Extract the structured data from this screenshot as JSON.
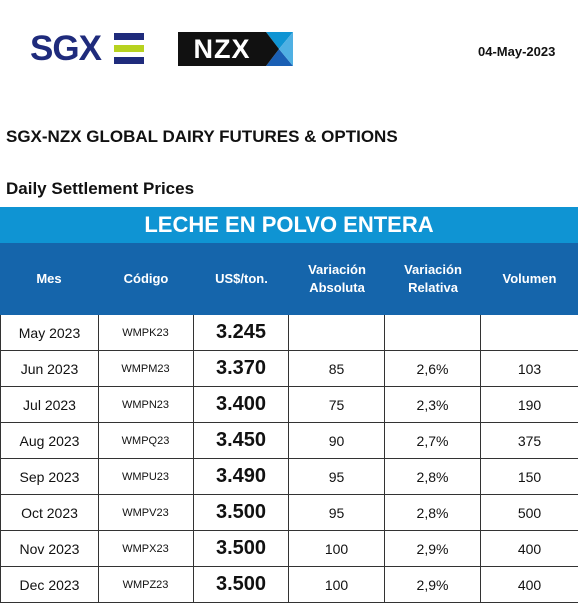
{
  "header": {
    "sgx_logo_text": "SGX",
    "nzx_logo_text": "NZX",
    "date": "04-May-2023",
    "title": "SGX-NZX GLOBAL DAIRY FUTURES & OPTIONS",
    "subtitle": "Daily Settlement Prices"
  },
  "table": {
    "product": "LECHE EN POLVO ENTERA",
    "columns": {
      "mes": "Mes",
      "codigo": "Código",
      "price": "US$/ton.",
      "var_abs_1": "Variación",
      "var_abs_2": "Absoluta",
      "var_rel_1": "Variación",
      "var_rel_2": "Relativa",
      "volumen": "Volumen"
    },
    "rows": [
      {
        "mes": "May 2023",
        "codigo": "WMPK23",
        "price": "3.245",
        "var_abs": "",
        "var_rel": "",
        "volumen": ""
      },
      {
        "mes": "Jun 2023",
        "codigo": "WMPM23",
        "price": "3.370",
        "var_abs": "85",
        "var_rel": "2,6%",
        "volumen": "103"
      },
      {
        "mes": "Jul 2023",
        "codigo": "WMPN23",
        "price": "3.400",
        "var_abs": "75",
        "var_rel": "2,3%",
        "volumen": "190"
      },
      {
        "mes": "Aug 2023",
        "codigo": "WMPQ23",
        "price": "3.450",
        "var_abs": "90",
        "var_rel": "2,7%",
        "volumen": "375"
      },
      {
        "mes": "Sep 2023",
        "codigo": "WMPU23",
        "price": "3.490",
        "var_abs": "95",
        "var_rel": "2,8%",
        "volumen": "150"
      },
      {
        "mes": "Oct 2023",
        "codigo": "WMPV23",
        "price": "3.500",
        "var_abs": "95",
        "var_rel": "2,8%",
        "volumen": "500"
      },
      {
        "mes": "Nov 2023",
        "codigo": "WMPX23",
        "price": "3.500",
        "var_abs": "100",
        "var_rel": "2,9%",
        "volumen": "400"
      },
      {
        "mes": "Dec 2023",
        "codigo": "WMPZ23",
        "price": "3.500",
        "var_abs": "100",
        "var_rel": "2,9%",
        "volumen": "400"
      }
    ]
  },
  "colors": {
    "banner": "#0f94d3",
    "header": "#1565ab",
    "sgx_blue": "#1f2b7c",
    "sgx_green": "#b7d21f",
    "nzx_blue": "#1a5fb4"
  }
}
